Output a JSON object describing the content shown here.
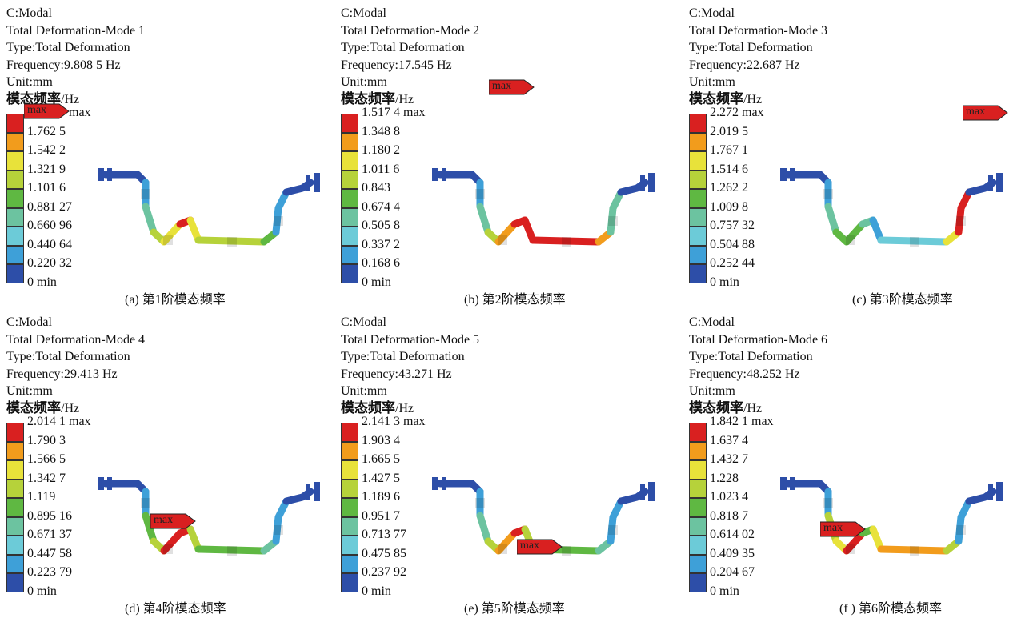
{
  "unit_label_cn": "模态频率",
  "unit_label_hz": "/Hz",
  "legend_colors": [
    "#d92020",
    "#f29c1c",
    "#e8e23a",
    "#b6d23a",
    "#5fb842",
    "#6cc3a0",
    "#6ccbd8",
    "#3ea0d8",
    "#2d4ea8"
  ],
  "panels": [
    {
      "analysis": "C:Modal",
      "title": "Total Deformation-Mode 1",
      "type": "Type:Total Deformation",
      "frequency": "Frequency:9.808 5 Hz",
      "unit": "Unit:mm",
      "ticks": [
        "1.982 9 max",
        "1.762 5",
        "1.542 2",
        "1.321 9",
        "1.101 6",
        "0.881 27",
        "0.660 96",
        "0.440 64",
        "0.220 32",
        "0 min"
      ],
      "max_label": "max",
      "caption": "(a) 第1阶模态频率"
    },
    {
      "analysis": "C:Modal",
      "title": "Total Deformation-Mode 2",
      "type": "Type:Total Deformation",
      "frequency": "Frequency:17.545 Hz",
      "unit": "Unit:mm",
      "ticks": [
        "1.517 4 max",
        "1.348 8",
        "1.180 2",
        "1.011 6",
        "0.843",
        "0.674 4",
        "0.505 8",
        "0.337 2",
        "0.168 6",
        "0 min"
      ],
      "max_label": "max",
      "caption": "(b) 第2阶模态频率"
    },
    {
      "analysis": "C:Modal",
      "title": "Total Deformation-Mode 3",
      "type": "Type:Total Deformation",
      "frequency": "Frequency:22.687 Hz",
      "unit": "Unit:mm",
      "ticks": [
        "2.272 max",
        "2.019 5",
        "1.767 1",
        "1.514 6",
        "1.262 2",
        "1.009 8",
        "0.757 32",
        "0.504 88",
        "0.252 44",
        "0 min"
      ],
      "max_label": "max",
      "caption": "(c) 第3阶模态频率"
    },
    {
      "analysis": "C:Modal",
      "title": "Total Deformation-Mode 4",
      "type": "Type:Total Deformation",
      "frequency": "Frequency:29.413 Hz",
      "unit": "Unit:mm",
      "ticks": [
        "2.014 1 max",
        "1.790 3",
        "1.566 5",
        "1.342 7",
        "1.119",
        "0.895 16",
        "0.671 37",
        "0.447 58",
        "0.223 79",
        "0 min"
      ],
      "max_label": "max",
      "caption": "(d) 第4阶模态频率"
    },
    {
      "analysis": "C:Modal",
      "title": "Total Deformation-Mode 5",
      "type": "Type:Total Deformation",
      "frequency": "Frequency:43.271 Hz",
      "unit": "Unit:mm",
      "ticks": [
        "2.141 3 max",
        "1.903 4",
        "1.665 5",
        "1.427 5",
        "1.189 6",
        "0.951 7",
        "0.713 77",
        "0.475 85",
        "0.237 92",
        "0 min"
      ],
      "max_label": "max",
      "caption": "(e) 第5阶模态频率"
    },
    {
      "analysis": "C:Modal",
      "title": "Total Deformation-Mode 6",
      "type": "Type:Total Deformation",
      "frequency": "Frequency:48.252 Hz",
      "unit": "Unit:mm",
      "ticks": [
        "1.842 1 max",
        "1.637 4",
        "1.432 7",
        "1.228",
        "1.023 4",
        "0.818 7",
        "0.614 02",
        "0.409 35",
        "0.204 67",
        "0 min"
      ],
      "max_label": "max",
      "caption": "(f ) 第6阶模态频率"
    }
  ]
}
